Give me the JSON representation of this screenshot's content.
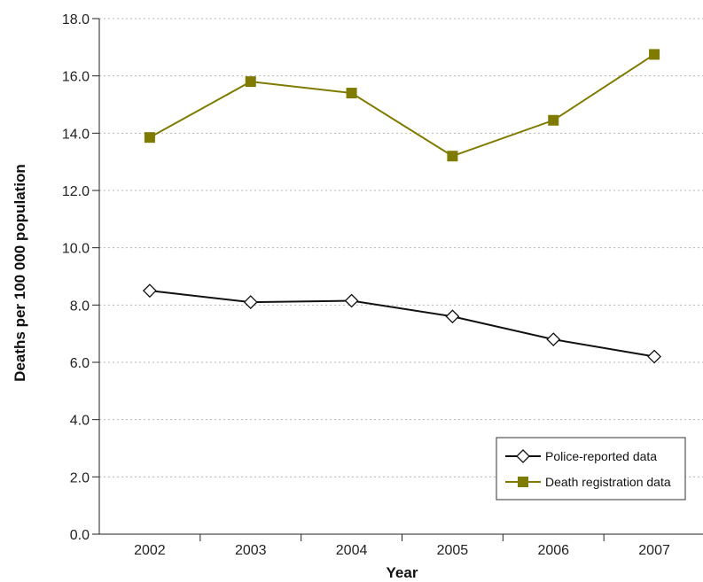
{
  "chart_data": {
    "type": "line",
    "title": "",
    "xlabel": "Year",
    "ylabel": "Deaths per 100 000 population",
    "categories": [
      "2002",
      "2003",
      "2004",
      "2005",
      "2006",
      "2007"
    ],
    "ylim": [
      0,
      18
    ],
    "yticks": [
      "0.0",
      "2.0",
      "4.0",
      "6.0",
      "8.0",
      "10.0",
      "12.0",
      "14.0",
      "16.0",
      "18.0"
    ],
    "grid": "horizontal dotted",
    "legend_position": "bottom-right",
    "series": [
      {
        "name": "Police-reported data",
        "values": [
          8.5,
          8.1,
          8.15,
          7.6,
          6.8,
          6.2
        ],
        "color": "#111111",
        "marker": "diamond-open"
      },
      {
        "name": "Death registration data",
        "values": [
          13.85,
          15.8,
          15.4,
          13.2,
          14.45,
          16.75
        ],
        "color": "#7f7a00",
        "marker": "square-filled"
      }
    ]
  }
}
